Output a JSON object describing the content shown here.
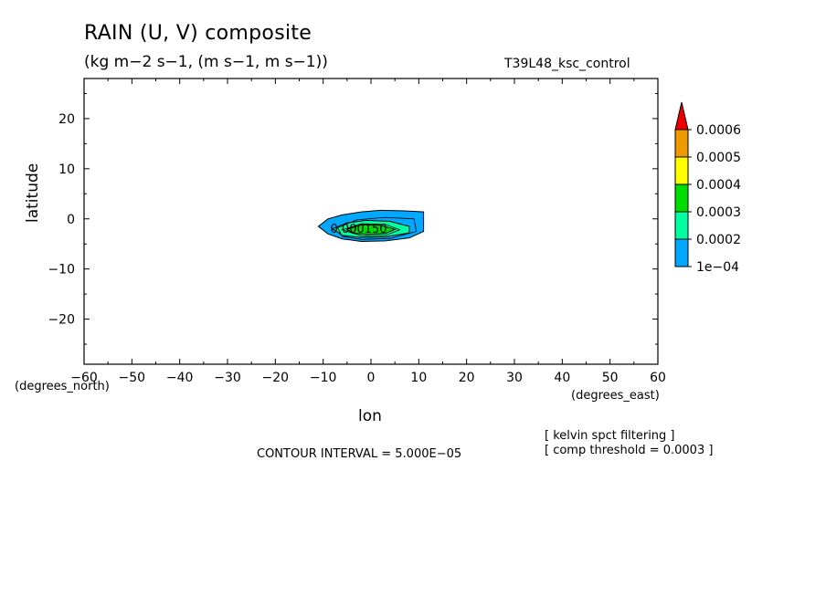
{
  "header": {
    "title": "RAIN (U, V) composite",
    "subtitle": "(kg m−2 s−1, (m s−1, m s−1))",
    "run_name": "T39L48_ksc_control"
  },
  "footer": {
    "contour_interval": "CONTOUR INTERVAL = 5.000E−05",
    "notes": [
      "[ kelvin spct filtering ]",
      "[ comp threshold = 0.0003 ]"
    ]
  },
  "chart_data": {
    "type": "contour",
    "title": "RAIN (U, V) composite",
    "xlabel": "lon",
    "ylabel": "latitude",
    "x_units": "(degrees_east)",
    "y_units": "(degrees_north)",
    "xlim": [
      -60,
      60
    ],
    "ylim": [
      -29,
      28
    ],
    "x_ticks": [
      -60,
      -50,
      -40,
      -30,
      -20,
      -10,
      0,
      10,
      20,
      30,
      40,
      50,
      60
    ],
    "y_ticks": [
      20,
      10,
      0,
      -10,
      -20
    ],
    "x_tick_labels": [
      "−60",
      "−50",
      "−40",
      "−30",
      "−20",
      "−10",
      "0",
      "10",
      "20",
      "30",
      "40",
      "50",
      "60"
    ],
    "y_tick_labels": [
      "20",
      "10",
      "0",
      "−10",
      "−20"
    ],
    "contour_label": "0.000150",
    "contour_label_pos": [
      -8.5,
      -2.8
    ],
    "colorbar": {
      "levels": [
        "0.0006",
        "0.0005",
        "0.0004",
        "0.0003",
        "0.0002",
        "1e−04"
      ],
      "level_values": [
        0.0006,
        0.0005,
        0.0004,
        0.0003,
        0.0002,
        0.0001
      ],
      "colors": [
        "#ee9a00",
        "#ffff00",
        "#00dd00",
        "#00ffa0",
        "#00a8ff"
      ],
      "extend_color": "#ee0000"
    },
    "regions": [
      {
        "level": 0.0001,
        "color": "#00a8ff",
        "polygon": [
          [
            -11,
            -1.5
          ],
          [
            -9,
            0
          ],
          [
            -6,
            0.8
          ],
          [
            -2,
            1.4
          ],
          [
            2,
            1.7
          ],
          [
            7,
            1.6
          ],
          [
            11,
            1.4
          ],
          [
            11,
            -2.5
          ],
          [
            8,
            -3.8
          ],
          [
            3,
            -4.4
          ],
          [
            -2,
            -4.5
          ],
          [
            -6,
            -4
          ],
          [
            -9,
            -3
          ]
        ]
      },
      {
        "level": 0.0002,
        "color": "#00ffa0",
        "polygon": [
          [
            -8,
            -2
          ],
          [
            -5,
            -0.8
          ],
          [
            -1,
            -0.3
          ],
          [
            4,
            -0.5
          ],
          [
            8,
            -1.5
          ],
          [
            8,
            -2.8
          ],
          [
            3,
            -3.6
          ],
          [
            -2,
            -3.7
          ],
          [
            -6,
            -3.3
          ]
        ]
      },
      {
        "level": 0.0003,
        "color": "#00dd00",
        "polygon": [
          [
            -5,
            -2.1
          ],
          [
            -2,
            -1.2
          ],
          [
            2,
            -1.3
          ],
          [
            5,
            -2.1
          ],
          [
            3,
            -2.9
          ],
          [
            -1,
            -3.1
          ],
          [
            -4,
            -2.8
          ]
        ]
      }
    ],
    "contour_lines": [
      [
        [
          -7,
          -1.8
        ],
        [
          -3,
          -0.2
        ],
        [
          3,
          0.3
        ],
        [
          9,
          0
        ],
        [
          9.5,
          -2.5
        ],
        [
          4,
          -3.9
        ],
        [
          -2,
          -4.1
        ],
        [
          -6,
          -3.5
        ]
      ],
      [
        [
          -6,
          -2.2
        ],
        [
          -2,
          -1
        ],
        [
          3,
          -1.1
        ],
        [
          6,
          -2.2
        ],
        [
          3,
          -3.3
        ],
        [
          -2,
          -3.4
        ]
      ]
    ]
  }
}
